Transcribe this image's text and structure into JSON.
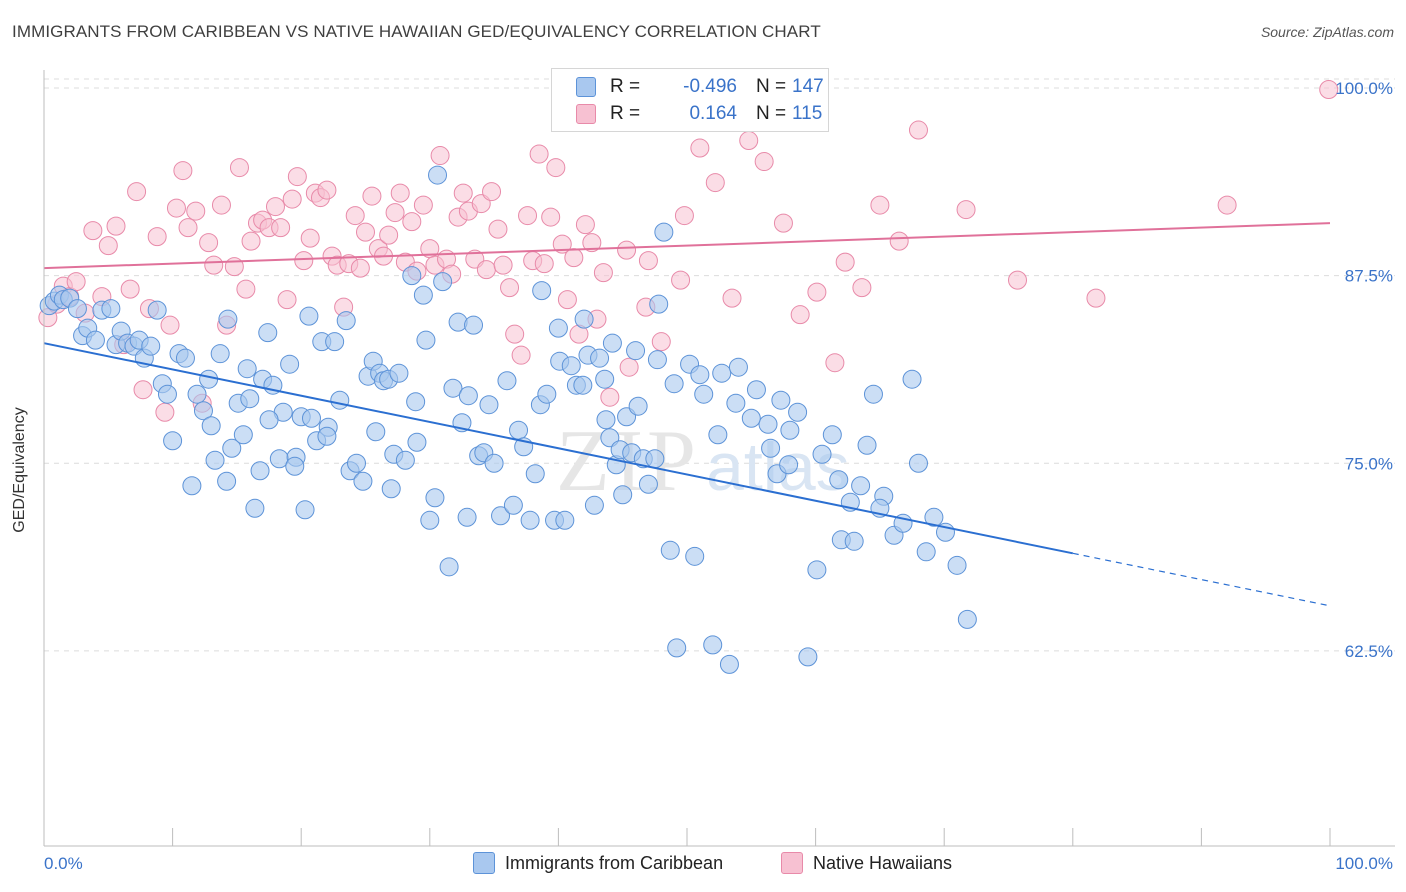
{
  "header": {
    "title": "IMMIGRANTS FROM CARIBBEAN VS NATIVE HAWAIIAN GED/EQUIVALENCY CORRELATION CHART",
    "source": "Source: ZipAtlas.com"
  },
  "watermark": {
    "zip": "ZIP",
    "atlas": "atlas"
  },
  "legend": {
    "r_label": "R =",
    "n_label": "N =",
    "series": [
      {
        "r": "-0.496",
        "n": "147"
      },
      {
        "r": "0.164",
        "n": "115"
      }
    ]
  },
  "bottom_legend": [
    "Immigrants from Caribbean",
    "Native Hawaiians"
  ],
  "colors": {
    "blue_fill": "#a9c8ef",
    "blue_stroke": "#5d93d8",
    "blue_line": "#2b6fd1",
    "pink_fill": "#f7c1d2",
    "pink_stroke": "#e88aa9",
    "pink_line": "#e0719a",
    "tick_text": "#3a73c9",
    "grid": "#dcdcdc"
  },
  "chart_data": {
    "type": "scatter",
    "title": "IMMIGRANTS FROM CARIBBEAN VS NATIVE HAWAIIAN GED/EQUIVALENCY CORRELATION CHART",
    "xlabel": "",
    "ylabel": "GED/Equivalency",
    "xlim": [
      0,
      100
    ],
    "ylim": [
      49.5,
      101.2
    ],
    "x_tick_labels": [
      "0.0%",
      "100.0%"
    ],
    "y_ticks": [
      62.5,
      75.0,
      87.5,
      100.0
    ],
    "y_tick_labels": [
      "62.5%",
      "75.0%",
      "87.5%",
      "100.0%"
    ],
    "grid": true,
    "legend_position": "top-center",
    "series": [
      {
        "name": "Immigrants from Caribbean",
        "r": -0.496,
        "n": 147,
        "trend": {
          "x0": 0,
          "y0": 83.0,
          "x1": 80,
          "y1": 69.0,
          "dash_to_x": 100,
          "dash_to_y": 65.5
        },
        "points": [
          [
            0.4,
            85.5
          ],
          [
            0.8,
            85.8
          ],
          [
            1.2,
            86.2
          ],
          [
            1.5,
            85.9
          ],
          [
            2.0,
            86.0
          ],
          [
            2.6,
            85.3
          ],
          [
            3.0,
            83.5
          ],
          [
            3.4,
            84.0
          ],
          [
            4.0,
            83.2
          ],
          [
            4.5,
            85.2
          ],
          [
            5.2,
            85.3
          ],
          [
            5.6,
            82.9
          ],
          [
            6.0,
            83.8
          ],
          [
            6.5,
            83.0
          ],
          [
            7.0,
            82.8
          ],
          [
            7.4,
            83.2
          ],
          [
            7.8,
            82.0
          ],
          [
            8.3,
            82.8
          ],
          [
            8.8,
            85.2
          ],
          [
            9.2,
            80.3
          ],
          [
            9.6,
            79.6
          ],
          [
            10.0,
            76.5
          ],
          [
            10.5,
            82.3
          ],
          [
            11.0,
            82.0
          ],
          [
            11.5,
            73.5
          ],
          [
            11.9,
            79.6
          ],
          [
            12.4,
            78.5
          ],
          [
            12.8,
            80.6
          ],
          [
            13.3,
            75.2
          ],
          [
            13.7,
            82.3
          ],
          [
            14.2,
            73.8
          ],
          [
            14.6,
            76.0
          ],
          [
            15.1,
            79.0
          ],
          [
            15.5,
            76.9
          ],
          [
            16.0,
            79.3
          ],
          [
            16.4,
            72.0
          ],
          [
            17.0,
            80.6
          ],
          [
            17.4,
            83.7
          ],
          [
            17.8,
            80.2
          ],
          [
            18.3,
            75.3
          ],
          [
            18.6,
            78.4
          ],
          [
            19.1,
            81.6
          ],
          [
            19.6,
            75.4
          ],
          [
            20.0,
            78.1
          ],
          [
            20.3,
            71.9
          ],
          [
            20.8,
            78.0
          ],
          [
            21.2,
            76.5
          ],
          [
            21.6,
            83.1
          ],
          [
            22.1,
            77.4
          ],
          [
            22.6,
            83.1
          ],
          [
            23.0,
            79.2
          ],
          [
            23.5,
            84.5
          ],
          [
            23.8,
            74.5
          ],
          [
            24.3,
            75.0
          ],
          [
            24.8,
            73.8
          ],
          [
            25.2,
            80.8
          ],
          [
            25.6,
            81.8
          ],
          [
            26.1,
            81.0
          ],
          [
            26.4,
            80.5
          ],
          [
            26.8,
            80.6
          ],
          [
            27.2,
            75.6
          ],
          [
            27.6,
            81.0
          ],
          [
            28.1,
            75.2
          ],
          [
            28.6,
            87.5
          ],
          [
            29.0,
            76.4
          ],
          [
            29.5,
            86.2
          ],
          [
            29.7,
            83.2
          ],
          [
            30.0,
            71.2
          ],
          [
            30.6,
            94.2
          ],
          [
            31.0,
            87.1
          ],
          [
            31.5,
            68.1
          ],
          [
            31.8,
            80.0
          ],
          [
            32.2,
            84.4
          ],
          [
            32.5,
            77.7
          ],
          [
            32.9,
            71.4
          ],
          [
            33.4,
            84.2
          ],
          [
            33.8,
            75.5
          ],
          [
            34.2,
            75.7
          ],
          [
            34.6,
            78.9
          ],
          [
            35.0,
            75.0
          ],
          [
            35.5,
            71.5
          ],
          [
            36.0,
            80.5
          ],
          [
            36.5,
            72.2
          ],
          [
            36.9,
            77.2
          ],
          [
            37.3,
            76.1
          ],
          [
            37.8,
            71.2
          ],
          [
            38.2,
            74.3
          ],
          [
            38.6,
            78.9
          ],
          [
            39.1,
            79.6
          ],
          [
            39.7,
            71.2
          ],
          [
            40.1,
            81.8
          ],
          [
            40.5,
            71.2
          ],
          [
            41.0,
            81.5
          ],
          [
            41.4,
            80.2
          ],
          [
            41.9,
            80.2
          ],
          [
            42.3,
            82.2
          ],
          [
            42.8,
            72.2
          ],
          [
            43.2,
            82.0
          ],
          [
            43.6,
            80.6
          ],
          [
            44.0,
            76.7
          ],
          [
            44.5,
            74.9
          ],
          [
            44.8,
            75.9
          ],
          [
            45.3,
            78.1
          ],
          [
            45.7,
            75.7
          ],
          [
            46.2,
            78.8
          ],
          [
            46.6,
            75.3
          ],
          [
            47.0,
            73.6
          ],
          [
            47.5,
            75.3
          ],
          [
            47.8,
            85.6
          ],
          [
            48.2,
            90.4
          ],
          [
            48.7,
            69.2
          ],
          [
            49.2,
            62.7
          ],
          [
            50.2,
            81.6
          ],
          [
            50.6,
            68.8
          ],
          [
            51.3,
            79.6
          ],
          [
            52.0,
            62.9
          ],
          [
            52.7,
            81.0
          ],
          [
            53.3,
            61.6
          ],
          [
            54.0,
            81.4
          ],
          [
            55.4,
            79.9
          ],
          [
            56.3,
            77.6
          ],
          [
            57.0,
            74.3
          ],
          [
            57.3,
            79.2
          ],
          [
            57.9,
            74.9
          ],
          [
            58.6,
            78.4
          ],
          [
            59.4,
            62.1
          ],
          [
            60.1,
            67.9
          ],
          [
            61.3,
            76.9
          ],
          [
            62.0,
            69.9
          ],
          [
            63.0,
            69.8
          ],
          [
            64.5,
            79.6
          ],
          [
            65.3,
            72.8
          ],
          [
            66.1,
            70.2
          ],
          [
            67.5,
            80.6
          ],
          [
            68.0,
            75.0
          ],
          [
            68.6,
            69.1
          ],
          [
            69.2,
            71.4
          ],
          [
            70.1,
            70.4
          ],
          [
            71.0,
            68.2
          ],
          [
            71.8,
            64.6
          ],
          [
            38.7,
            86.5
          ],
          [
            40.0,
            84.0
          ],
          [
            42.0,
            84.6
          ],
          [
            44.2,
            83.0
          ],
          [
            46.0,
            82.5
          ],
          [
            47.7,
            81.9
          ],
          [
            49.0,
            80.3
          ],
          [
            51.0,
            80.9
          ],
          [
            53.8,
            79.0
          ],
          [
            55.0,
            78.0
          ],
          [
            56.5,
            76.0
          ],
          [
            58.0,
            77.2
          ],
          [
            60.5,
            75.6
          ],
          [
            61.8,
            73.9
          ],
          [
            63.5,
            73.5
          ],
          [
            65.0,
            72.0
          ],
          [
            66.8,
            71.0
          ],
          [
            62.7,
            72.4
          ],
          [
            64.0,
            76.2
          ],
          [
            52.4,
            76.9
          ],
          [
            45.0,
            72.9
          ],
          [
            43.7,
            77.9
          ],
          [
            33.0,
            79.5
          ],
          [
            30.4,
            72.7
          ],
          [
            28.9,
            79.1
          ],
          [
            27.0,
            73.3
          ],
          [
            25.8,
            77.1
          ],
          [
            22.0,
            76.8
          ],
          [
            20.6,
            84.8
          ],
          [
            19.5,
            74.8
          ],
          [
            17.5,
            77.9
          ],
          [
            16.8,
            74.5
          ],
          [
            15.8,
            81.3
          ],
          [
            14.3,
            84.6
          ],
          [
            13.0,
            77.5
          ]
        ]
      },
      {
        "name": "Native Hawaiians",
        "r": 0.164,
        "n": 115,
        "trend": {
          "x0": 0,
          "y0": 88.0,
          "x1": 100,
          "y1": 91.0
        },
        "points": [
          [
            0.3,
            84.7
          ],
          [
            1.0,
            85.6
          ],
          [
            1.5,
            86.8
          ],
          [
            2.0,
            86.1
          ],
          [
            2.5,
            87.1
          ],
          [
            3.2,
            85.0
          ],
          [
            3.8,
            90.5
          ],
          [
            4.5,
            86.1
          ],
          [
            5.0,
            89.5
          ],
          [
            5.6,
            90.8
          ],
          [
            6.2,
            82.9
          ],
          [
            6.7,
            86.6
          ],
          [
            7.2,
            93.1
          ],
          [
            7.7,
            79.9
          ],
          [
            8.2,
            85.3
          ],
          [
            8.8,
            90.1
          ],
          [
            9.4,
            78.4
          ],
          [
            9.8,
            84.2
          ],
          [
            10.3,
            92.0
          ],
          [
            10.8,
            94.5
          ],
          [
            11.2,
            90.7
          ],
          [
            11.8,
            91.8
          ],
          [
            12.3,
            79.0
          ],
          [
            12.8,
            89.7
          ],
          [
            13.2,
            88.2
          ],
          [
            13.8,
            92.2
          ],
          [
            14.2,
            84.2
          ],
          [
            14.8,
            88.1
          ],
          [
            15.2,
            94.7
          ],
          [
            15.7,
            86.6
          ],
          [
            16.1,
            89.8
          ],
          [
            16.6,
            91.0
          ],
          [
            17.0,
            91.2
          ],
          [
            17.5,
            90.7
          ],
          [
            18.0,
            92.1
          ],
          [
            18.4,
            90.7
          ],
          [
            18.9,
            85.9
          ],
          [
            19.3,
            92.6
          ],
          [
            19.7,
            94.1
          ],
          [
            20.2,
            88.5
          ],
          [
            20.7,
            90.0
          ],
          [
            21.1,
            93.0
          ],
          [
            21.5,
            92.7
          ],
          [
            22.0,
            93.2
          ],
          [
            22.4,
            88.8
          ],
          [
            22.8,
            88.2
          ],
          [
            23.3,
            85.4
          ],
          [
            23.7,
            88.3
          ],
          [
            24.2,
            91.5
          ],
          [
            24.6,
            88.0
          ],
          [
            25.0,
            90.4
          ],
          [
            25.5,
            92.8
          ],
          [
            26.0,
            89.3
          ],
          [
            26.4,
            88.8
          ],
          [
            26.8,
            90.2
          ],
          [
            27.3,
            91.7
          ],
          [
            27.7,
            93.0
          ],
          [
            28.1,
            88.4
          ],
          [
            28.6,
            91.1
          ],
          [
            29.0,
            87.8
          ],
          [
            29.5,
            92.2
          ],
          [
            30.0,
            89.3
          ],
          [
            30.4,
            88.2
          ],
          [
            30.8,
            95.5
          ],
          [
            31.3,
            88.6
          ],
          [
            31.7,
            87.6
          ],
          [
            32.2,
            91.4
          ],
          [
            32.6,
            93.0
          ],
          [
            33.0,
            91.8
          ],
          [
            33.5,
            88.6
          ],
          [
            34.0,
            92.3
          ],
          [
            34.4,
            87.9
          ],
          [
            34.8,
            93.1
          ],
          [
            35.3,
            90.6
          ],
          [
            35.7,
            88.2
          ],
          [
            36.2,
            86.7
          ],
          [
            36.6,
            83.6
          ],
          [
            37.1,
            82.2
          ],
          [
            37.6,
            91.5
          ],
          [
            38.0,
            88.5
          ],
          [
            38.5,
            95.6
          ],
          [
            38.9,
            88.3
          ],
          [
            39.4,
            91.4
          ],
          [
            39.8,
            94.7
          ],
          [
            40.3,
            89.6
          ],
          [
            40.7,
            85.9
          ],
          [
            41.2,
            88.7
          ],
          [
            41.6,
            83.6
          ],
          [
            42.1,
            90.9
          ],
          [
            42.6,
            89.7
          ],
          [
            43.0,
            84.6
          ],
          [
            43.5,
            87.7
          ],
          [
            44.0,
            79.4
          ],
          [
            45.5,
            81.4
          ],
          [
            46.8,
            85.4
          ],
          [
            48.0,
            83.1
          ],
          [
            49.5,
            87.2
          ],
          [
            51.0,
            96.0
          ],
          [
            52.2,
            93.7
          ],
          [
            53.5,
            86.0
          ],
          [
            54.8,
            96.5
          ],
          [
            56.0,
            95.1
          ],
          [
            57.5,
            91.0
          ],
          [
            58.8,
            84.9
          ],
          [
            60.1,
            86.4
          ],
          [
            61.5,
            81.7
          ],
          [
            62.3,
            88.4
          ],
          [
            63.6,
            86.7
          ],
          [
            65.0,
            92.2
          ],
          [
            66.5,
            89.8
          ],
          [
            68.0,
            97.2
          ],
          [
            71.7,
            91.9
          ],
          [
            75.7,
            87.2
          ],
          [
            81.8,
            86.0
          ],
          [
            92.0,
            92.2
          ],
          [
            99.9,
            99.9
          ],
          [
            59.6,
            100.0
          ],
          [
            49.8,
            91.5
          ],
          [
            47.0,
            88.5
          ],
          [
            45.3,
            89.2
          ]
        ]
      }
    ]
  }
}
